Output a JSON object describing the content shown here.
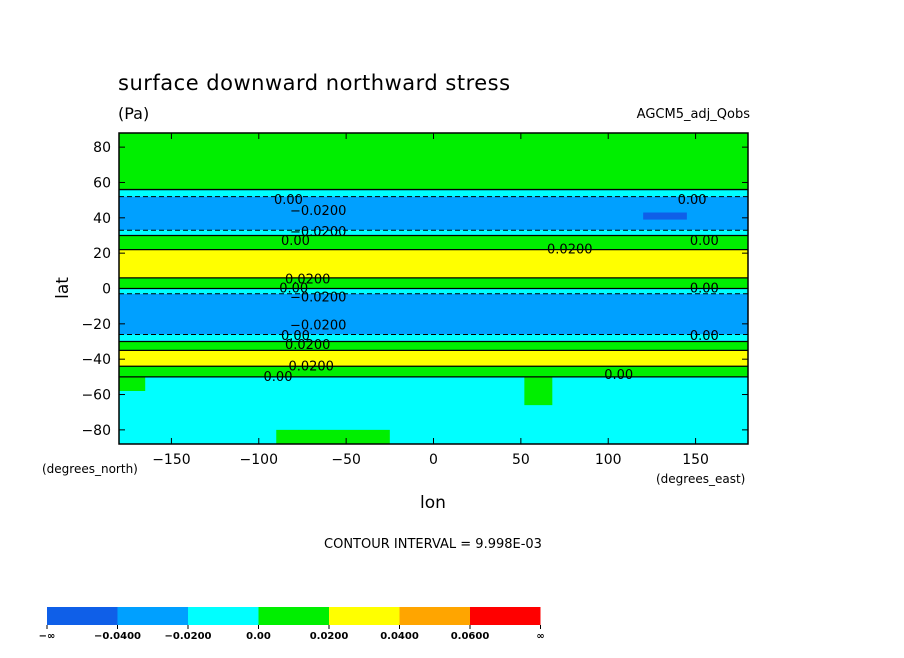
{
  "chart_data": {
    "type": "heatmap",
    "title": "surface downward northward stress",
    "units": "(Pa)",
    "run_name": "AGCM5_adj_Qobs",
    "xlabel": "lon",
    "ylabel": "lat",
    "x_unit_label": "(degrees_east)",
    "y_unit_label": "(degrees_north)",
    "xlim": [
      -180,
      180
    ],
    "ylim": [
      -88,
      88
    ],
    "x_ticks": [
      {
        "value": -150,
        "label": "−150"
      },
      {
        "value": -100,
        "label": "−100"
      },
      {
        "value": -50,
        "label": "−50"
      },
      {
        "value": 0,
        "label": "0"
      },
      {
        "value": 50,
        "label": "50"
      },
      {
        "value": 100,
        "label": "100"
      },
      {
        "value": 150,
        "label": "150"
      }
    ],
    "y_ticks": [
      {
        "value": 80,
        "label": "80"
      },
      {
        "value": 60,
        "label": "60"
      },
      {
        "value": 40,
        "label": "40"
      },
      {
        "value": 20,
        "label": "20"
      },
      {
        "value": 0,
        "label": "0"
      },
      {
        "value": -20,
        "label": "−20"
      },
      {
        "value": -40,
        "label": "−40"
      },
      {
        "value": -60,
        "label": "−60"
      },
      {
        "value": -80,
        "label": "−80"
      }
    ],
    "contour_interval_text": "CONTOUR INTERVAL = 9.998E-03",
    "colorbar": {
      "colors": [
        "#0f5fe8",
        "#00a0ff",
        "#00ffff",
        "#00ef00",
        "#ffff00",
        "#ffa500",
        "#ff0000"
      ],
      "labels": [
        "−∞",
        "−0.0400",
        "−0.0200",
        "0.00",
        "0.0200",
        "0.0400",
        "0.0600",
        "∞"
      ]
    },
    "latitude_bands": [
      {
        "lat_min": 56,
        "lat_max": 88,
        "level": "0.00 to 0.0200",
        "color": "#00ef00"
      },
      {
        "lat_min": 52,
        "lat_max": 56,
        "level": "-0.0200 to 0.00",
        "color": "#00ffff"
      },
      {
        "lat_min": 33,
        "lat_max": 52,
        "level": "-0.0400 to -0.0200",
        "color": "#00a0ff"
      },
      {
        "lat_min": 30,
        "lat_max": 33,
        "level": "-0.0200 to 0.00",
        "color": "#00ffff"
      },
      {
        "lat_min": 22,
        "lat_max": 30,
        "level": "0.00 to 0.0200",
        "color": "#00ef00"
      },
      {
        "lat_min": 6,
        "lat_max": 22,
        "level": "0.0200 to 0.0400",
        "color": "#ffff00"
      },
      {
        "lat_min": 0,
        "lat_max": 6,
        "level": "0.00 to 0.0200",
        "color": "#00ef00"
      },
      {
        "lat_min": -3,
        "lat_max": 0,
        "level": "-0.0200 to 0.00",
        "color": "#00ffff"
      },
      {
        "lat_min": -26,
        "lat_max": -3,
        "level": "-0.0400 to -0.0200",
        "color": "#00a0ff"
      },
      {
        "lat_min": -30,
        "lat_max": -26,
        "level": "-0.0200 to 0.00",
        "color": "#00ffff"
      },
      {
        "lat_min": -35,
        "lat_max": -30,
        "level": "0.00 to 0.0200",
        "color": "#00ef00"
      },
      {
        "lat_min": -44,
        "lat_max": -35,
        "level": "0.0200 to 0.0400",
        "color": "#ffff00"
      },
      {
        "lat_min": -50,
        "lat_max": -44,
        "level": "0.00 to 0.0200",
        "color": "#00ef00"
      },
      {
        "lat_min": -88,
        "lat_max": -50,
        "level": "-0.0200 to 0.00",
        "color": "#00ffff"
      }
    ],
    "patches": [
      {
        "lon_min": 120,
        "lon_max": 145,
        "lat_min": 39,
        "lat_max": 43,
        "color": "#0f5fe8"
      },
      {
        "lon_min": -90,
        "lon_max": -25,
        "lat_min": -88,
        "lat_max": -80,
        "color": "#00ef00"
      },
      {
        "lon_min": 52,
        "lon_max": 68,
        "lat_min": -66,
        "lat_max": -50,
        "color": "#00ef00"
      },
      {
        "lon_min": -180,
        "lon_max": -165,
        "lat_min": -58,
        "lat_max": -50,
        "color": "#00ef00"
      }
    ],
    "contour_labels": [
      {
        "text": "0.00",
        "lon": -83,
        "lat": 50
      },
      {
        "text": "−0.0200",
        "lon": -66,
        "lat": 44
      },
      {
        "text": "−0.0200",
        "lon": -66,
        "lat": 32
      },
      {
        "text": "0.00",
        "lon": -79,
        "lat": 27
      },
      {
        "text": "0.0200",
        "lon": 78,
        "lat": 22
      },
      {
        "text": "0.00",
        "lon": 148,
        "lat": 50
      },
      {
        "text": "0.00",
        "lon": 155,
        "lat": 27
      },
      {
        "text": "0.0200",
        "lon": -72,
        "lat": 5
      },
      {
        "text": "0.00",
        "lon": -80,
        "lat": 0
      },
      {
        "text": "−0.0200",
        "lon": -66,
        "lat": -5
      },
      {
        "text": "0.00",
        "lon": 155,
        "lat": 0
      },
      {
        "text": "−0.0200",
        "lon": -66,
        "lat": -21
      },
      {
        "text": "0.00",
        "lon": -79,
        "lat": -27
      },
      {
        "text": "0.0200",
        "lon": -72,
        "lat": -32
      },
      {
        "text": "0.00",
        "lon": 155,
        "lat": -27
      },
      {
        "text": "0.0200",
        "lon": -70,
        "lat": -44
      },
      {
        "text": "0.00",
        "lon": -89,
        "lat": -50
      },
      {
        "text": "0.00",
        "lon": 106,
        "lat": -49
      }
    ]
  }
}
